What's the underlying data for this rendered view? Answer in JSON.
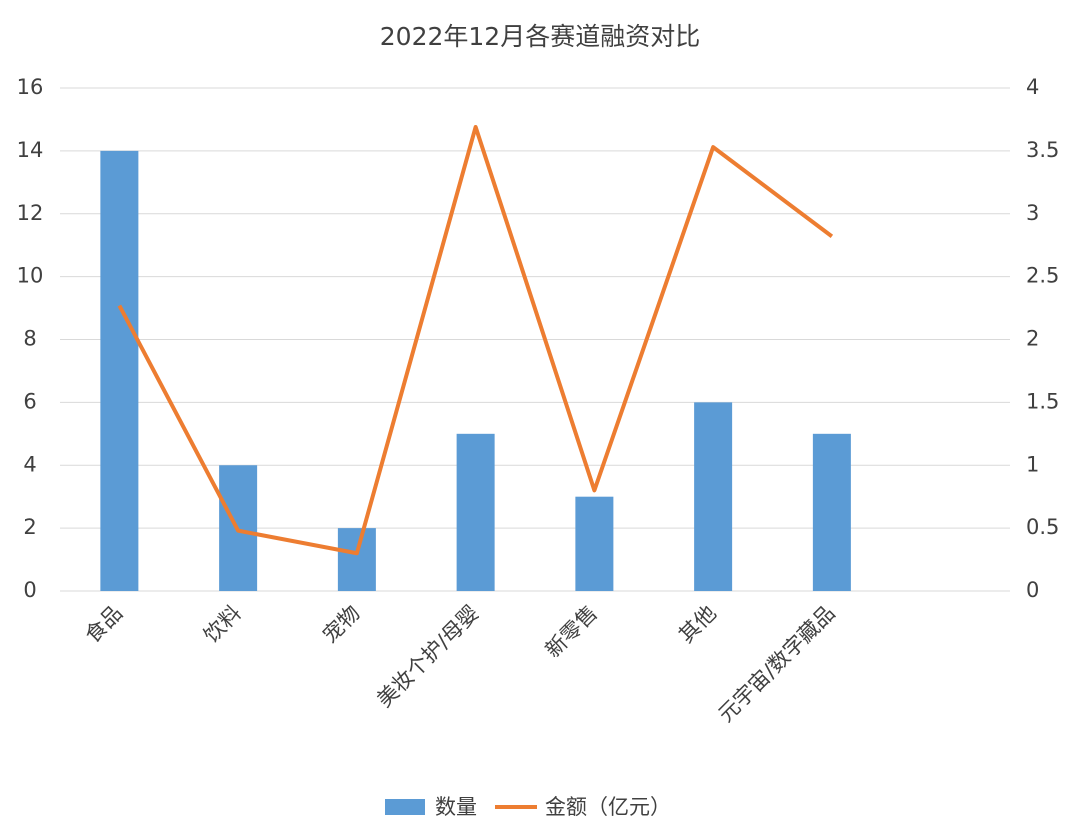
{
  "chart_data": {
    "type": "bar-line",
    "title": "2022年12月各赛道融资对比",
    "categories": [
      "食品",
      "饮料",
      "宠物",
      "美妆个护/母婴",
      "新零售",
      "其他",
      "元宇宙/数字藏品",
      null
    ],
    "series": [
      {
        "name": "数量",
        "type": "bar",
        "color": "#5b9bd5",
        "values": [
          14,
          4,
          2,
          5,
          3,
          6,
          5,
          null
        ]
      },
      {
        "name": "金额（亿元）",
        "type": "line",
        "axis": "y2",
        "color": "#ed7d31",
        "values": [
          2.27,
          0.48,
          0.3,
          3.69,
          0.8,
          3.53,
          2.82,
          null
        ]
      }
    ],
    "ylim": [
      0,
      16
    ],
    "yticks": [
      0,
      2,
      4,
      6,
      8,
      10,
      12,
      14,
      16
    ],
    "y2lim": [
      0,
      4
    ],
    "y2ticks": [
      0,
      0.5,
      1,
      1.5,
      2,
      2.5,
      3,
      3.5,
      4
    ],
    "grid": true,
    "legend": "bottom"
  }
}
